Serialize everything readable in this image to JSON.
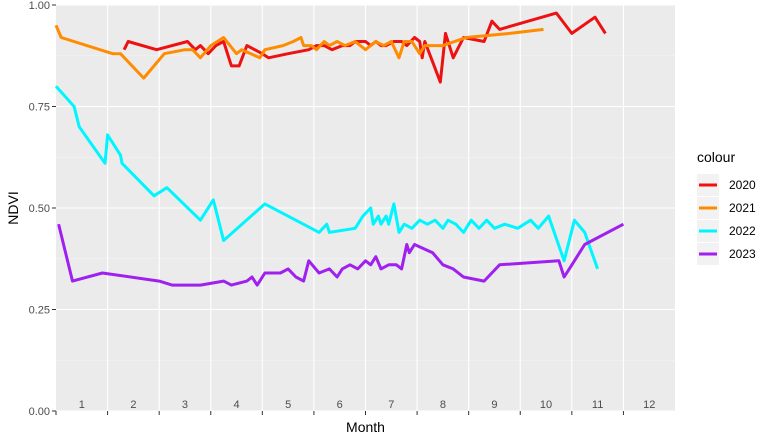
{
  "chart_data": {
    "type": "line",
    "xlabel": "Month",
    "ylabel": "NDVI",
    "xlim": [
      0.5,
      12.5
    ],
    "ylim": [
      0,
      1
    ],
    "month_labels": [
      "1",
      "2",
      "3",
      "4",
      "5",
      "6",
      "7",
      "8",
      "9",
      "10",
      "11",
      "12"
    ],
    "y_ticks": [
      0,
      0.25,
      0.5,
      0.75,
      1
    ],
    "y_tick_labels": [
      "0.00",
      "0.25",
      "0.50",
      "0.75",
      "1.00"
    ],
    "grid": true,
    "legend": {
      "title": "colour",
      "position": "right"
    },
    "series": [
      {
        "name": "2020",
        "color": "#ee1111",
        "points": [
          [
            1.82,
            0.89
          ],
          [
            1.9,
            0.91
          ],
          [
            2.45,
            0.89
          ],
          [
            3.05,
            0.91
          ],
          [
            3.2,
            0.89
          ],
          [
            3.3,
            0.9
          ],
          [
            3.45,
            0.88
          ],
          [
            3.6,
            0.9
          ],
          [
            3.75,
            0.91
          ],
          [
            3.9,
            0.85
          ],
          [
            4.05,
            0.85
          ],
          [
            4.2,
            0.9
          ],
          [
            4.5,
            0.88
          ],
          [
            4.62,
            0.87
          ],
          [
            5.0,
            0.88
          ],
          [
            5.4,
            0.89
          ],
          [
            5.55,
            0.9
          ],
          [
            5.7,
            0.9
          ],
          [
            5.85,
            0.89
          ],
          [
            6.05,
            0.9
          ],
          [
            6.2,
            0.9
          ],
          [
            6.3,
            0.91
          ],
          [
            6.5,
            0.91
          ],
          [
            6.6,
            0.9
          ],
          [
            6.7,
            0.91
          ],
          [
            6.8,
            0.9
          ],
          [
            6.9,
            0.9
          ],
          [
            7.05,
            0.91
          ],
          [
            7.2,
            0.91
          ],
          [
            7.3,
            0.9
          ],
          [
            7.45,
            0.92
          ],
          [
            7.55,
            0.91
          ],
          [
            7.6,
            0.87
          ],
          [
            7.65,
            0.91
          ],
          [
            7.8,
            0.86
          ],
          [
            7.95,
            0.81
          ],
          [
            8.05,
            0.93
          ],
          [
            8.2,
            0.87
          ],
          [
            8.4,
            0.92
          ],
          [
            8.8,
            0.91
          ],
          [
            8.95,
            0.96
          ],
          [
            9.1,
            0.94
          ],
          [
            10.2,
            0.98
          ],
          [
            10.5,
            0.93
          ],
          [
            10.95,
            0.97
          ],
          [
            11.15,
            0.93
          ]
        ]
      },
      {
        "name": "2021",
        "color": "#ff8c00",
        "points": [
          [
            0.5,
            0.95
          ],
          [
            0.6,
            0.92
          ],
          [
            1.6,
            0.88
          ],
          [
            1.75,
            0.88
          ],
          [
            2.2,
            0.82
          ],
          [
            2.6,
            0.88
          ],
          [
            3.0,
            0.89
          ],
          [
            3.15,
            0.89
          ],
          [
            3.3,
            0.87
          ],
          [
            3.5,
            0.9
          ],
          [
            3.75,
            0.92
          ],
          [
            4.0,
            0.88
          ],
          [
            4.1,
            0.89
          ],
          [
            4.45,
            0.87
          ],
          [
            4.55,
            0.89
          ],
          [
            4.9,
            0.9
          ],
          [
            5.1,
            0.91
          ],
          [
            5.25,
            0.92
          ],
          [
            5.3,
            0.9
          ],
          [
            5.45,
            0.9
          ],
          [
            5.55,
            0.89
          ],
          [
            5.7,
            0.91
          ],
          [
            5.8,
            0.9
          ],
          [
            5.95,
            0.91
          ],
          [
            6.1,
            0.9
          ],
          [
            6.3,
            0.91
          ],
          [
            6.5,
            0.89
          ],
          [
            6.6,
            0.9
          ],
          [
            6.7,
            0.91
          ],
          [
            6.85,
            0.9
          ],
          [
            7.0,
            0.91
          ],
          [
            7.15,
            0.87
          ],
          [
            7.25,
            0.91
          ],
          [
            7.4,
            0.91
          ],
          [
            7.55,
            0.88
          ],
          [
            7.65,
            0.9
          ],
          [
            8.0,
            0.9
          ],
          [
            8.45,
            0.92
          ],
          [
            9.3,
            0.93
          ],
          [
            9.95,
            0.94
          ]
        ]
      },
      {
        "name": "2022",
        "color": "#00f5ff",
        "points": [
          [
            0.5,
            0.8
          ],
          [
            0.85,
            0.75
          ],
          [
            0.95,
            0.7
          ],
          [
            1.45,
            0.61
          ],
          [
            1.5,
            0.68
          ],
          [
            1.75,
            0.63
          ],
          [
            1.78,
            0.61
          ],
          [
            2.4,
            0.53
          ],
          [
            2.65,
            0.55
          ],
          [
            3.3,
            0.47
          ],
          [
            3.55,
            0.52
          ],
          [
            3.75,
            0.42
          ],
          [
            4.55,
            0.51
          ],
          [
            5.6,
            0.44
          ],
          [
            5.75,
            0.46
          ],
          [
            5.8,
            0.44
          ],
          [
            6.3,
            0.45
          ],
          [
            6.45,
            0.48
          ],
          [
            6.6,
            0.5
          ],
          [
            6.65,
            0.46
          ],
          [
            6.75,
            0.48
          ],
          [
            6.8,
            0.46
          ],
          [
            6.9,
            0.48
          ],
          [
            6.95,
            0.46
          ],
          [
            7.05,
            0.51
          ],
          [
            7.15,
            0.44
          ],
          [
            7.25,
            0.46
          ],
          [
            7.4,
            0.45
          ],
          [
            7.55,
            0.47
          ],
          [
            7.7,
            0.46
          ],
          [
            7.85,
            0.47
          ],
          [
            8.0,
            0.45
          ],
          [
            8.1,
            0.47
          ],
          [
            8.25,
            0.46
          ],
          [
            8.4,
            0.44
          ],
          [
            8.55,
            0.47
          ],
          [
            8.7,
            0.45
          ],
          [
            8.85,
            0.47
          ],
          [
            9.0,
            0.45
          ],
          [
            9.2,
            0.46
          ],
          [
            9.45,
            0.45
          ],
          [
            9.7,
            0.47
          ],
          [
            9.85,
            0.45
          ],
          [
            10.05,
            0.48
          ],
          [
            10.35,
            0.37
          ],
          [
            10.55,
            0.47
          ],
          [
            10.75,
            0.44
          ],
          [
            11.0,
            0.35
          ]
        ]
      },
      {
        "name": "2023",
        "color": "#a020f0",
        "points": [
          [
            0.55,
            0.46
          ],
          [
            0.82,
            0.32
          ],
          [
            1.4,
            0.34
          ],
          [
            2.5,
            0.32
          ],
          [
            2.75,
            0.31
          ],
          [
            3.3,
            0.31
          ],
          [
            3.75,
            0.32
          ],
          [
            3.9,
            0.31
          ],
          [
            4.2,
            0.32
          ],
          [
            4.3,
            0.33
          ],
          [
            4.4,
            0.31
          ],
          [
            4.55,
            0.34
          ],
          [
            4.85,
            0.34
          ],
          [
            5.0,
            0.35
          ],
          [
            5.15,
            0.33
          ],
          [
            5.3,
            0.32
          ],
          [
            5.4,
            0.37
          ],
          [
            5.6,
            0.34
          ],
          [
            5.8,
            0.35
          ],
          [
            5.95,
            0.33
          ],
          [
            6.05,
            0.35
          ],
          [
            6.2,
            0.36
          ],
          [
            6.35,
            0.35
          ],
          [
            6.5,
            0.37
          ],
          [
            6.6,
            0.36
          ],
          [
            6.7,
            0.38
          ],
          [
            6.8,
            0.35
          ],
          [
            6.95,
            0.36
          ],
          [
            7.1,
            0.36
          ],
          [
            7.2,
            0.35
          ],
          [
            7.3,
            0.41
          ],
          [
            7.35,
            0.39
          ],
          [
            7.45,
            0.41
          ],
          [
            7.8,
            0.39
          ],
          [
            8.0,
            0.36
          ],
          [
            8.2,
            0.35
          ],
          [
            8.4,
            0.33
          ],
          [
            8.8,
            0.32
          ],
          [
            9.1,
            0.36
          ],
          [
            10.25,
            0.37
          ],
          [
            10.35,
            0.33
          ],
          [
            10.45,
            0.35
          ],
          [
            10.75,
            0.41
          ],
          [
            11.5,
            0.46
          ]
        ]
      }
    ]
  }
}
